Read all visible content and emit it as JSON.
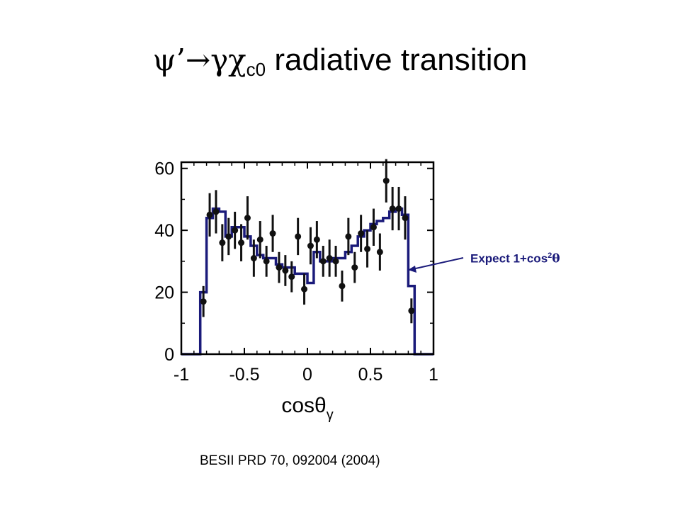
{
  "slide": {
    "title_psi": "ψ’",
    "title_arrow": "→",
    "title_gamma_chi": "γχ",
    "title_sub": "c0",
    "title_rest": " radiative transition",
    "reference": "BESII PRD 70, 092004 (2004)",
    "annotation_main": "Expect 1+cos",
    "annotation_sup": "2",
    "annotation_theta": "θ"
  },
  "colors": {
    "histogram": "#1a1a7a",
    "points": "#111111",
    "annotation": "#1a1a7a"
  },
  "chart_data": {
    "type": "scatter",
    "title": "",
    "xlabel": "cosθγ",
    "ylabel": "",
    "xlim": [
      -1,
      1
    ],
    "ylim": [
      0,
      62
    ],
    "x_ticks": [
      -1,
      -0.5,
      0,
      0.5,
      1
    ],
    "x_tick_labels": [
      "-1",
      "-0.5",
      "0",
      "0.5",
      "1"
    ],
    "y_ticks": [
      0,
      20,
      40,
      60
    ],
    "y_tick_labels": [
      "0",
      "20",
      "40",
      "60"
    ],
    "series": [
      {
        "kind": "data_points",
        "x": [
          -0.825,
          -0.775,
          -0.725,
          -0.675,
          -0.625,
          -0.575,
          -0.525,
          -0.475,
          -0.425,
          -0.375,
          -0.325,
          -0.275,
          -0.225,
          -0.175,
          -0.125,
          -0.075,
          -0.025,
          0.025,
          0.075,
          0.125,
          0.175,
          0.225,
          0.275,
          0.325,
          0.375,
          0.425,
          0.475,
          0.525,
          0.575,
          0.625,
          0.675,
          0.725,
          0.775,
          0.825
        ],
        "y": [
          17,
          45,
          46,
          36,
          38,
          40,
          36,
          44,
          31,
          37,
          30,
          39,
          28,
          27,
          25,
          38,
          21,
          35,
          37,
          30,
          31,
          30,
          22,
          38,
          28,
          39,
          34,
          41,
          33,
          56,
          47,
          47,
          44,
          14
        ],
        "error": [
          5,
          7,
          7,
          6,
          6,
          6,
          6,
          7,
          6,
          6,
          5,
          6,
          5,
          5,
          5,
          6,
          5,
          6,
          6,
          5,
          6,
          5,
          5,
          6,
          5,
          6,
          6,
          6,
          6,
          7,
          7,
          7,
          7,
          4
        ]
      },
      {
        "kind": "histogram_expectation",
        "bin_edges": [
          -1.0,
          -0.85,
          -0.8,
          -0.75,
          -0.7,
          -0.65,
          -0.6,
          -0.55,
          -0.5,
          -0.45,
          -0.4,
          -0.35,
          -0.3,
          -0.25,
          -0.2,
          -0.15,
          -0.1,
          -0.05,
          0.0,
          0.05,
          0.1,
          0.15,
          0.2,
          0.25,
          0.3,
          0.35,
          0.4,
          0.45,
          0.5,
          0.55,
          0.6,
          0.65,
          0.7,
          0.75,
          0.8,
          0.85,
          1.0
        ],
        "values": [
          0,
          20,
          44,
          47,
          46,
          38,
          41,
          41,
          38,
          35,
          32,
          31,
          31,
          29,
          28,
          28,
          26,
          26,
          23,
          33,
          30,
          30,
          31,
          31,
          33,
          35,
          38,
          40,
          42,
          43,
          44,
          46,
          47,
          45,
          22,
          0
        ]
      }
    ]
  }
}
